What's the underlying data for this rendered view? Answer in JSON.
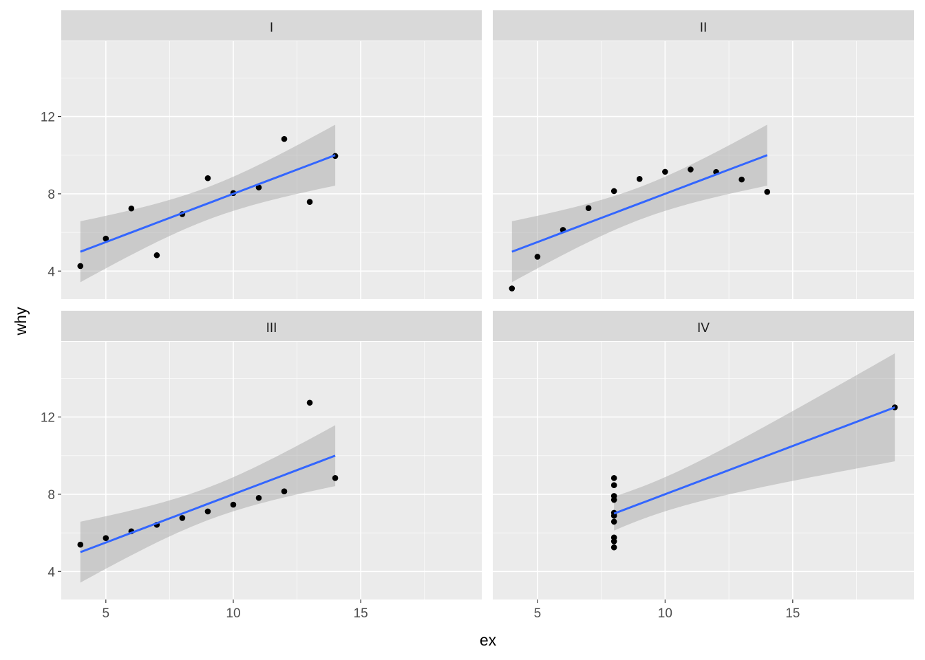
{
  "chart_data": {
    "type": "scatter",
    "facet": "wrap 2x2",
    "xlabel": "ex",
    "ylabel": "why",
    "xlim": [
      3.25,
      19.75
    ],
    "ylim": [
      2.55,
      15.9
    ],
    "x_ticks": [
      5,
      10,
      15
    ],
    "y_ticks": [
      4,
      8,
      12
    ],
    "x_minor": [
      7.5,
      12.5,
      17.5
    ],
    "y_minor": [
      6,
      10,
      14
    ],
    "grid": true,
    "smooth": {
      "method": "lm",
      "confidence_band": true
    },
    "colors": {
      "panel_bg": "#ebebeb",
      "strip_bg": "#d9d9d9",
      "grid": "#ffffff",
      "point": "#000000",
      "line": "#3366ff",
      "band": "#999999"
    },
    "panels": [
      {
        "label": "I",
        "x": [
          10,
          8,
          13,
          9,
          11,
          14,
          6,
          4,
          12,
          7,
          5
        ],
        "y": [
          8.04,
          6.95,
          7.58,
          8.81,
          8.33,
          9.96,
          7.24,
          4.26,
          10.84,
          4.82,
          5.68
        ]
      },
      {
        "label": "II",
        "x": [
          10,
          8,
          13,
          9,
          11,
          14,
          6,
          4,
          12,
          7,
          5
        ],
        "y": [
          9.14,
          8.14,
          8.74,
          8.77,
          9.26,
          8.1,
          6.13,
          3.1,
          9.13,
          7.26,
          4.74
        ]
      },
      {
        "label": "III",
        "x": [
          10,
          8,
          13,
          9,
          11,
          14,
          6,
          4,
          12,
          7,
          5
        ],
        "y": [
          7.46,
          6.77,
          12.74,
          7.11,
          7.81,
          8.84,
          6.08,
          5.39,
          8.15,
          6.42,
          5.73
        ]
      },
      {
        "label": "IV",
        "x": [
          8,
          8,
          8,
          8,
          8,
          8,
          8,
          19,
          8,
          8,
          8
        ],
        "y": [
          6.58,
          5.76,
          7.71,
          8.84,
          8.47,
          7.04,
          5.25,
          12.5,
          5.56,
          7.91,
          6.89
        ]
      }
    ]
  }
}
